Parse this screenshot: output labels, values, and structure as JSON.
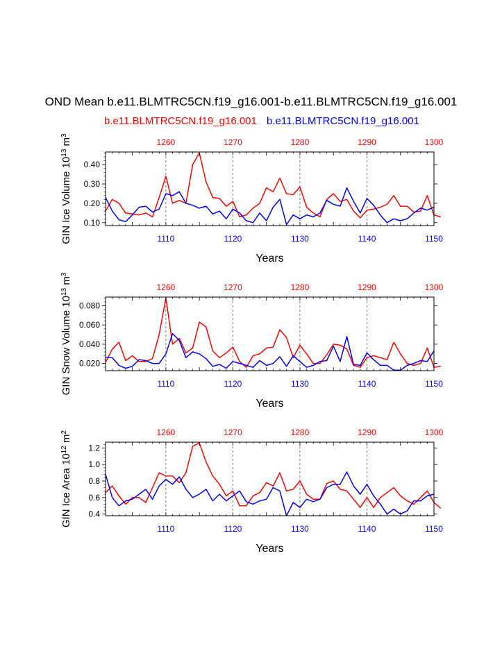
{
  "title": "OND Mean b.e11.BLMTRC5CN.f19_g16.001-b.e11.BLMTRC5CN.f19_g16.001",
  "legend": {
    "red_label": "b.e11.BLMTRC5CN.f19_g16.001",
    "blue_label": "b.e11.BLMTRC5CN.f19_g16.001"
  },
  "colors": {
    "red": "#ff0000",
    "blue": "#0000ff",
    "axis": "#000000",
    "grid": "#555555"
  },
  "chart_data": [
    {
      "type": "line",
      "ylabel_main": "GIN Ice Volume 10",
      "ylabel_exp": "13",
      "ylabel_unit": " m",
      "ylabel_unit_exp": "3",
      "xlabel": "Years",
      "xlim_bottom": [
        1101,
        1150
      ],
      "xlim_top": [
        1251,
        1300
      ],
      "ylim": [
        0.085,
        0.465
      ],
      "yticks": [
        0.1,
        0.2,
        0.3,
        0.4
      ],
      "ytick_labels": [
        "0.10",
        "0.20",
        "0.30",
        "0.40"
      ],
      "bottom_ticks": [
        1110,
        1120,
        1130,
        1140,
        1150
      ],
      "top_ticks": [
        1260,
        1270,
        1280,
        1290,
        1300
      ],
      "grid_years": [
        1110,
        1120,
        1130,
        1140
      ],
      "series": [
        {
          "name": "red (top axis years)",
          "color": "red",
          "values": [
            0.16,
            0.22,
            0.2,
            0.15,
            0.145,
            0.14,
            0.15,
            0.13,
            0.23,
            0.34,
            0.2,
            0.215,
            0.2,
            0.4,
            0.46,
            0.31,
            0.23,
            0.225,
            0.185,
            0.21,
            0.13,
            0.14,
            0.175,
            0.2,
            0.28,
            0.26,
            0.33,
            0.25,
            0.245,
            0.285,
            0.18,
            0.15,
            0.13,
            0.22,
            0.25,
            0.21,
            0.22,
            0.16,
            0.125,
            0.165,
            0.17,
            0.18,
            0.195,
            0.24,
            0.185,
            0.185,
            0.155,
            0.16,
            0.24,
            0.14,
            0.13
          ]
        },
        {
          "name": "blue (bottom axis years)",
          "color": "blue",
          "values": [
            0.23,
            0.16,
            0.115,
            0.105,
            0.14,
            0.18,
            0.185,
            0.155,
            0.17,
            0.25,
            0.24,
            0.26,
            0.2,
            0.19,
            0.175,
            0.185,
            0.145,
            0.16,
            0.12,
            0.17,
            0.15,
            0.11,
            0.1,
            0.15,
            0.11,
            0.18,
            0.22,
            0.09,
            0.14,
            0.12,
            0.14,
            0.13,
            0.15,
            0.215,
            0.195,
            0.185,
            0.28,
            0.21,
            0.15,
            0.225,
            0.19,
            0.14,
            0.1,
            0.12,
            0.11,
            0.12,
            0.15,
            0.175,
            0.165,
            0.18
          ]
        }
      ]
    },
    {
      "type": "line",
      "ylabel_main": "GIN Snow Volume 10",
      "ylabel_exp": "13",
      "ylabel_unit": " m",
      "ylabel_unit_exp": "3",
      "xlabel": "Years",
      "xlim_bottom": [
        1101,
        1150
      ],
      "xlim_top": [
        1251,
        1300
      ],
      "ylim": [
        0.0125,
        0.089
      ],
      "yticks": [
        0.02,
        0.04,
        0.06,
        0.08
      ],
      "ytick_labels": [
        "0.020",
        "0.040",
        "0.060",
        "0.080"
      ],
      "bottom_ticks": [
        1110,
        1120,
        1130,
        1140,
        1150
      ],
      "top_ticks": [
        1260,
        1270,
        1280,
        1290,
        1300
      ],
      "grid_years": [
        1110,
        1120,
        1130,
        1140
      ],
      "series": [
        {
          "name": "red (top axis years)",
          "color": "red",
          "values": [
            0.021,
            0.035,
            0.042,
            0.023,
            0.028,
            0.022,
            0.022,
            0.025,
            0.05,
            0.088,
            0.04,
            0.046,
            0.031,
            0.036,
            0.063,
            0.058,
            0.033,
            0.026,
            0.031,
            0.037,
            0.022,
            0.016,
            0.028,
            0.03,
            0.036,
            0.037,
            0.055,
            0.047,
            0.026,
            0.039,
            0.03,
            0.02,
            0.02,
            0.029,
            0.04,
            0.039,
            0.035,
            0.018,
            0.016,
            0.026,
            0.028,
            0.026,
            0.024,
            0.042,
            0.03,
            0.02,
            0.018,
            0.02,
            0.036,
            0.016,
            0.017
          ]
        },
        {
          "name": "blue (bottom axis years)",
          "color": "blue",
          "values": [
            0.026,
            0.026,
            0.018,
            0.015,
            0.017,
            0.024,
            0.023,
            0.02,
            0.02,
            0.03,
            0.051,
            0.044,
            0.026,
            0.032,
            0.03,
            0.025,
            0.017,
            0.019,
            0.015,
            0.022,
            0.02,
            0.018,
            0.016,
            0.023,
            0.018,
            0.02,
            0.027,
            0.017,
            0.028,
            0.022,
            0.016,
            0.018,
            0.022,
            0.023,
            0.038,
            0.022,
            0.048,
            0.019,
            0.018,
            0.031,
            0.024,
            0.018,
            0.018,
            0.013,
            0.013,
            0.018,
            0.02,
            0.023,
            0.022,
            0.033
          ]
        }
      ]
    },
    {
      "type": "line",
      "ylabel_main": "GIN Ice Area 10",
      "ylabel_exp": "12",
      "ylabel_unit": " m",
      "ylabel_unit_exp": "2",
      "xlabel": "Years",
      "xlim_bottom": [
        1101,
        1150
      ],
      "xlim_top": [
        1251,
        1300
      ],
      "ylim": [
        0.38,
        1.27
      ],
      "yticks": [
        0.4,
        0.6,
        0.8,
        1.0,
        1.2
      ],
      "ytick_labels": [
        "0.4",
        "0.6",
        "0.8",
        "1.0",
        "1.2"
      ],
      "bottom_ticks": [
        1110,
        1120,
        1130,
        1140,
        1150
      ],
      "top_ticks": [
        1260,
        1270,
        1280,
        1290,
        1300
      ],
      "grid_years": [
        1110,
        1120,
        1130,
        1140
      ],
      "series": [
        {
          "name": "red (top axis years)",
          "color": "red",
          "values": [
            0.66,
            0.74,
            0.62,
            0.52,
            0.6,
            0.6,
            0.54,
            0.72,
            0.9,
            0.86,
            0.86,
            0.78,
            0.9,
            1.22,
            1.26,
            1.03,
            0.86,
            0.76,
            0.62,
            0.68,
            0.5,
            0.5,
            0.62,
            0.66,
            0.78,
            0.74,
            0.9,
            0.68,
            0.7,
            0.8,
            0.64,
            0.58,
            0.58,
            0.77,
            0.8,
            0.7,
            0.68,
            0.58,
            0.48,
            0.6,
            0.48,
            0.6,
            0.66,
            0.72,
            0.62,
            0.56,
            0.52,
            0.6,
            0.68,
            0.54,
            0.47
          ]
        },
        {
          "name": "blue (bottom axis years)",
          "color": "blue",
          "values": [
            0.88,
            0.6,
            0.5,
            0.56,
            0.58,
            0.64,
            0.7,
            0.58,
            0.74,
            0.82,
            0.76,
            0.85,
            0.7,
            0.6,
            0.64,
            0.7,
            0.56,
            0.64,
            0.56,
            0.62,
            0.68,
            0.55,
            0.52,
            0.56,
            0.58,
            0.72,
            0.68,
            0.38,
            0.54,
            0.48,
            0.58,
            0.55,
            0.58,
            0.72,
            0.76,
            0.76,
            0.91,
            0.74,
            0.64,
            0.76,
            0.62,
            0.52,
            0.4,
            0.46,
            0.4,
            0.44,
            0.56,
            0.56,
            0.62,
            0.64
          ]
        }
      ]
    }
  ]
}
